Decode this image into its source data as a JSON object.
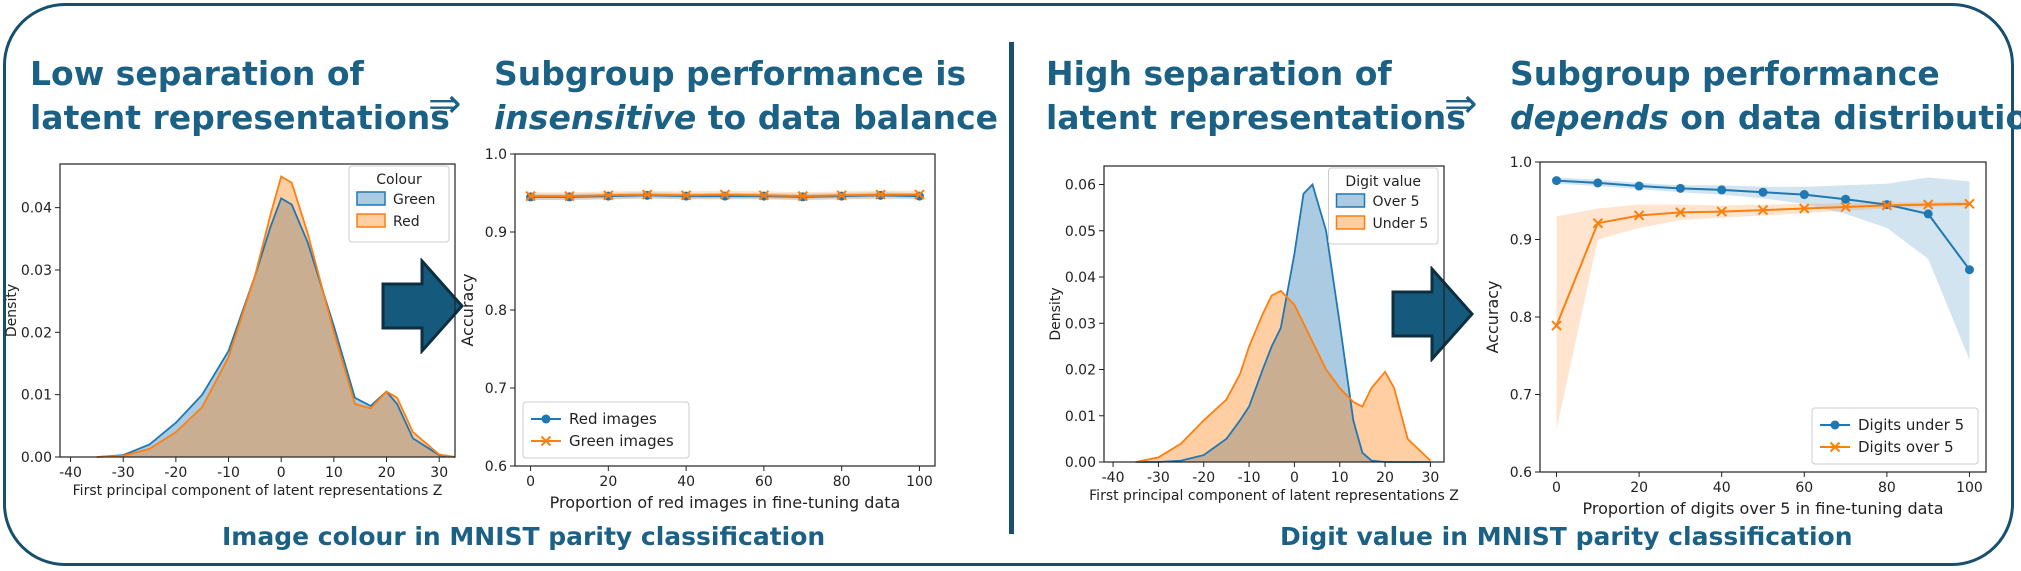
{
  "colors": {
    "accent": "#1b6185",
    "blue": "#1f77b4",
    "orange": "#ff7f0e"
  },
  "left": {
    "headline1": [
      "Low separation of",
      "latent representations"
    ],
    "headline2": {
      "line1": "Subgroup performance is",
      "line2_em": "insensitive",
      "line2_rest": " to data balance"
    },
    "caption": "Image colour in MNIST parity classification"
  },
  "right": {
    "headline1": [
      "High separation of",
      "latent representations"
    ],
    "headline2": {
      "line1": "Subgroup performance",
      "line2_em": "depends",
      "line2_rest": " on data distribution"
    },
    "caption": "Digit value in MNIST parity classification"
  },
  "implies_symbol": "⇒",
  "chart_data": [
    {
      "id": "density-colour",
      "type": "area",
      "xlabel": "First principal component of latent representations Z",
      "ylabel": "Density",
      "xlim": [
        -42,
        33
      ],
      "ylim": [
        0,
        0.047
      ],
      "xticks": [
        -40,
        -30,
        -20,
        -10,
        0,
        10,
        20,
        30
      ],
      "yticks": [
        0.0,
        0.01,
        0.02,
        0.03,
        0.04
      ],
      "ytick_labels": [
        "0.00",
        "0.01",
        "0.02",
        "0.03",
        "0.04"
      ],
      "legend": {
        "title": "Colour",
        "position": "top-right"
      },
      "x": [
        -35,
        -30,
        -25,
        -20,
        -15,
        -10,
        -5,
        -2,
        0,
        2,
        5,
        10,
        14,
        17,
        20,
        22,
        25,
        30,
        33
      ],
      "series": [
        {
          "name": "Green",
          "color": "#1f77b4",
          "values": [
            0,
            0.0003,
            0.002,
            0.0055,
            0.01,
            0.017,
            0.029,
            0.037,
            0.0415,
            0.0405,
            0.0345,
            0.021,
            0.0095,
            0.0082,
            0.0105,
            0.0085,
            0.003,
            0.0003,
            0
          ]
        },
        {
          "name": "Red",
          "color": "#ff7f0e",
          "values": [
            0,
            0.0002,
            0.0013,
            0.004,
            0.008,
            0.016,
            0.029,
            0.039,
            0.045,
            0.044,
            0.036,
            0.02,
            0.0085,
            0.0078,
            0.0105,
            0.0095,
            0.004,
            0.0004,
            0
          ]
        }
      ]
    },
    {
      "id": "accuracy-colour",
      "type": "line",
      "xlabel": "Proportion of red images in fine-tuning data",
      "ylabel": "Accuracy",
      "xlim": [
        -4,
        104
      ],
      "ylim": [
        0.6,
        1.0
      ],
      "xticks": [
        0,
        20,
        40,
        60,
        80,
        100
      ],
      "yticks": [
        0.6,
        0.7,
        0.8,
        0.9,
        1.0
      ],
      "ytick_labels": [
        "0.6",
        "0.7",
        "0.8",
        "0.9",
        "1.0"
      ],
      "legend": {
        "position": "bottom-left"
      },
      "x": [
        0,
        10,
        20,
        30,
        40,
        50,
        60,
        70,
        80,
        90,
        100
      ],
      "series": [
        {
          "name": "Red images",
          "marker": "circle",
          "color": "#1f77b4",
          "values": [
            0.945,
            0.945,
            0.946,
            0.947,
            0.946,
            0.946,
            0.946,
            0.945,
            0.946,
            0.947,
            0.946
          ],
          "band": 0.004
        },
        {
          "name": "Green images",
          "marker": "x",
          "color": "#ff7f0e",
          "values": [
            0.946,
            0.946,
            0.947,
            0.948,
            0.947,
            0.948,
            0.947,
            0.946,
            0.947,
            0.948,
            0.948
          ],
          "band": 0.005
        }
      ]
    },
    {
      "id": "density-digit",
      "type": "area",
      "xlabel": "First principal component of latent representations Z",
      "ylabel": "Density",
      "xlim": [
        -42,
        33
      ],
      "ylim": [
        0,
        0.064
      ],
      "xticks": [
        -40,
        -30,
        -20,
        -10,
        0,
        10,
        20,
        30
      ],
      "yticks": [
        0.0,
        0.01,
        0.02,
        0.03,
        0.04,
        0.05,
        0.06
      ],
      "ytick_labels": [
        "0.00",
        "0.01",
        "0.02",
        "0.03",
        "0.04",
        "0.05",
        "0.06"
      ],
      "legend": {
        "title": "Digit value",
        "position": "top-right"
      },
      "x": [
        -35,
        -30,
        -25,
        -20,
        -15,
        -12,
        -10,
        -7,
        -5,
        -3,
        0,
        2,
        4,
        7,
        10,
        13,
        15,
        17,
        20,
        22,
        25,
        30
      ],
      "series": [
        {
          "name": "Over 5",
          "color": "#1f77b4",
          "values": [
            0,
            0,
            0.0003,
            0.0015,
            0.005,
            0.009,
            0.012,
            0.02,
            0.025,
            0.029,
            0.045,
            0.058,
            0.06,
            0.05,
            0.03,
            0.009,
            0.002,
            0.0003,
            0,
            0,
            0,
            0
          ]
        },
        {
          "name": "Under 5",
          "color": "#ff7f0e",
          "values": [
            0,
            0.001,
            0.004,
            0.009,
            0.0135,
            0.019,
            0.025,
            0.032,
            0.036,
            0.037,
            0.034,
            0.03,
            0.026,
            0.02,
            0.016,
            0.013,
            0.012,
            0.016,
            0.0195,
            0.016,
            0.005,
            0.0003
          ]
        }
      ]
    },
    {
      "id": "accuracy-digit",
      "type": "line",
      "xlabel": "Proportion of digits over 5 in fine-tuning data",
      "ylabel": "Accuracy",
      "xlim": [
        -4,
        104
      ],
      "ylim": [
        0.6,
        1.0
      ],
      "xticks": [
        0,
        20,
        40,
        60,
        80,
        100
      ],
      "yticks": [
        0.6,
        0.7,
        0.8,
        0.9,
        1.0
      ],
      "ytick_labels": [
        "0.6",
        "0.7",
        "0.8",
        "0.9",
        "1.0"
      ],
      "legend": {
        "position": "bottom-right"
      },
      "x": [
        0,
        10,
        20,
        30,
        40,
        50,
        60,
        70,
        80,
        90,
        100
      ],
      "series": [
        {
          "name": "Digits under 5",
          "marker": "circle",
          "color": "#1f77b4",
          "values": [
            0.976,
            0.973,
            0.969,
            0.966,
            0.964,
            0.961,
            0.958,
            0.952,
            0.945,
            0.933,
            0.861
          ],
          "lower": [
            0.972,
            0.969,
            0.965,
            0.961,
            0.958,
            0.953,
            0.946,
            0.933,
            0.915,
            0.875,
            0.745
          ],
          "upper": [
            0.98,
            0.977,
            0.973,
            0.97,
            0.97,
            0.968,
            0.968,
            0.97,
            0.972,
            0.98,
            0.975
          ]
        },
        {
          "name": "Digits over 5",
          "marker": "x",
          "color": "#ff7f0e",
          "values": [
            0.789,
            0.921,
            0.931,
            0.935,
            0.936,
            0.938,
            0.94,
            0.942,
            0.944,
            0.945,
            0.946
          ],
          "lower": [
            0.655,
            0.9,
            0.915,
            0.925,
            0.928,
            0.931,
            0.934,
            0.937,
            0.94,
            0.942,
            0.943
          ],
          "upper": [
            0.93,
            0.94,
            0.945,
            0.945,
            0.944,
            0.945,
            0.946,
            0.947,
            0.948,
            0.948,
            0.949
          ]
        }
      ]
    }
  ]
}
